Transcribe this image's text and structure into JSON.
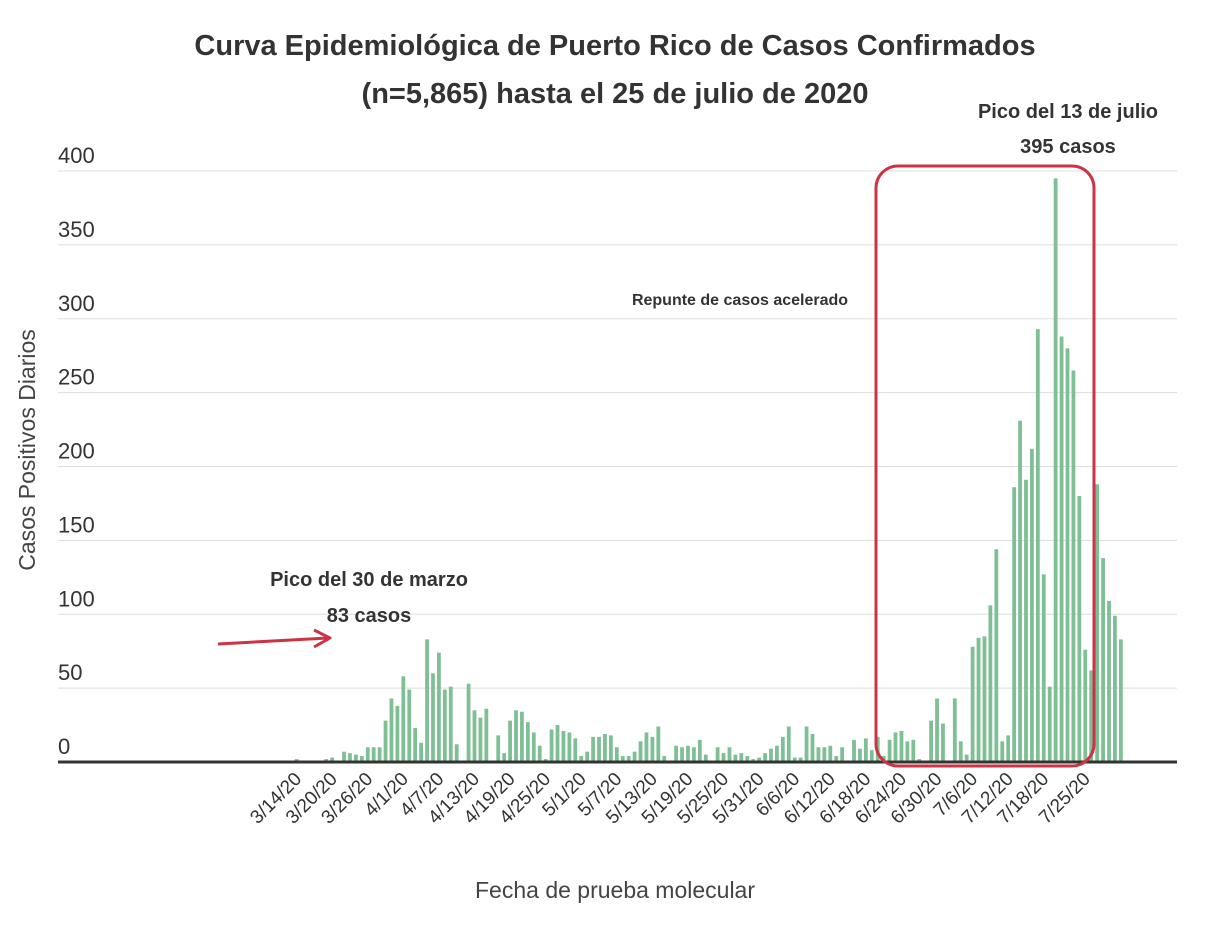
{
  "chart_data": {
    "type": "bar",
    "title_line1": "Curva Epidemiológica de Puerto Rico de Casos Confirmados",
    "title_line2": "(n=5,865) hasta el 25 de julio de 2020",
    "xlabel": "Fecha de prueba molecular",
    "ylabel": "Casos Positivos Diarios",
    "ylim": [
      0,
      400
    ],
    "yticks": [
      0,
      50,
      100,
      150,
      200,
      250,
      300,
      350,
      400
    ],
    "xtick_labels": [
      "3/14/20",
      "3/20/20",
      "3/26/20",
      "4/1/20",
      "4/7/20",
      "4/13/20",
      "4/19/20",
      "4/25/20",
      "5/1/20",
      "5/7/20",
      "5/13/20",
      "5/19/20",
      "5/25/20",
      "5/31/20",
      "6/6/20",
      "6/12/20",
      "6/18/20",
      "6/24/20",
      "6/30/20",
      "7/6/20",
      "7/12/20",
      "7/18/20",
      "7/25/20"
    ],
    "grid": true,
    "color": "#7fbf95",
    "start_date": "2020-03-01",
    "values": [
      0,
      0,
      0,
      0,
      0,
      0,
      0,
      0,
      0,
      0,
      0,
      0,
      0,
      2,
      0,
      0,
      0,
      1,
      2,
      3,
      0,
      7,
      6,
      5,
      4,
      10,
      10,
      10,
      28,
      43,
      38,
      58,
      49,
      23,
      13,
      83,
      60,
      74,
      49,
      51,
      12,
      1,
      53,
      35,
      30,
      36,
      1,
      18,
      6,
      28,
      35,
      34,
      27,
      20,
      11,
      2,
      22,
      25,
      21,
      20,
      16,
      4,
      7,
      17,
      17,
      19,
      18,
      10,
      4,
      4,
      7,
      14,
      20,
      17,
      24,
      4,
      0,
      11,
      10,
      11,
      10,
      15,
      5,
      0,
      10,
      6,
      10,
      5,
      6,
      4,
      2,
      3,
      6,
      9,
      11,
      17,
      24,
      3,
      3,
      24,
      19,
      10,
      10,
      11,
      4,
      10,
      1,
      15,
      9,
      16,
      8,
      17,
      4,
      15,
      20,
      21,
      14,
      15,
      2,
      0,
      28,
      43,
      26,
      0,
      43,
      14,
      5,
      78,
      84,
      85,
      106,
      144,
      14,
      18,
      186,
      231,
      191,
      212,
      293,
      127,
      51,
      395,
      288,
      280,
      265,
      180,
      76,
      62,
      188,
      138,
      109,
      99,
      83
    ],
    "annotations": {
      "peak_march_line1": "Pico del 30 de marzo",
      "peak_march_line2": "83 casos",
      "peak_july_line1": "Pico del 13 de julio",
      "peak_july_line2": "395 casos",
      "surge": "Repunte de casos acelerado"
    }
  }
}
